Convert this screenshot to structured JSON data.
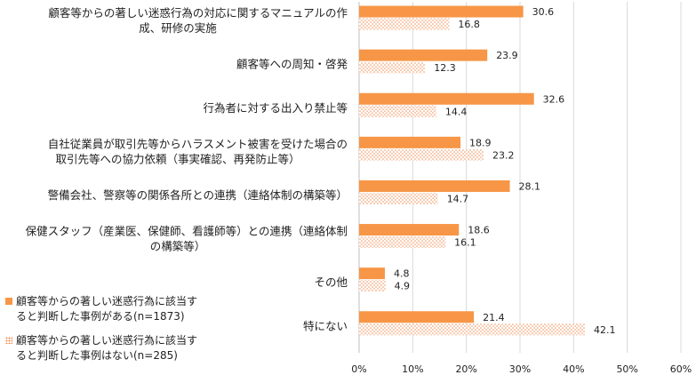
{
  "chart_data": {
    "type": "bar",
    "orientation": "horizontal",
    "categories": [
      [
        "顧客等からの著しい迷惑行為の対応に関するマニュアルの作",
        "成、研修の実施"
      ],
      [
        "顧客等への周知・啓発"
      ],
      [
        "行為者に対する出入り禁止等"
      ],
      [
        "自社従業員が取引先等からハラスメント被害を受けた場合の",
        "取引先等への協力依頼（事実確認、再発防止等）"
      ],
      [
        "警備会社、警察等の関係各所との連携（連絡体制の構築等）"
      ],
      [
        "保健スタッフ（産業医、保健師、看護師等）との連携（連絡体制",
        "の構築等）"
      ],
      [
        "その他"
      ],
      [
        "特にない"
      ]
    ],
    "series": [
      {
        "name": "顧客等からの著しい迷惑行為に該当すると判断した事例がある(n=1873)",
        "legend_lines": [
          "顧客等からの著しい迷惑行為に該当す",
          "ると判断した事例がある(n=1873)"
        ],
        "values": [
          30.6,
          23.9,
          32.6,
          18.9,
          28.1,
          18.6,
          4.8,
          21.4
        ],
        "color": "#f79646",
        "fill": "solid"
      },
      {
        "name": "顧客等からの著しい迷惑行為に該当すると判断した事例はない(n=285)",
        "legend_lines": [
          "顧客等からの著しい迷惑行為に該当す",
          "ると判断した事例はない(n=285)"
        ],
        "values": [
          16.8,
          12.3,
          14.4,
          23.2,
          14.7,
          16.1,
          4.9,
          42.1
        ],
        "color": "#f4b183",
        "fill": "dotted"
      }
    ],
    "xlim": [
      0,
      60
    ],
    "xticks": [
      "0%",
      "10%",
      "20%",
      "30%",
      "40%",
      "50%",
      "60%"
    ],
    "grid": true,
    "legend_position": "bottom-left"
  }
}
